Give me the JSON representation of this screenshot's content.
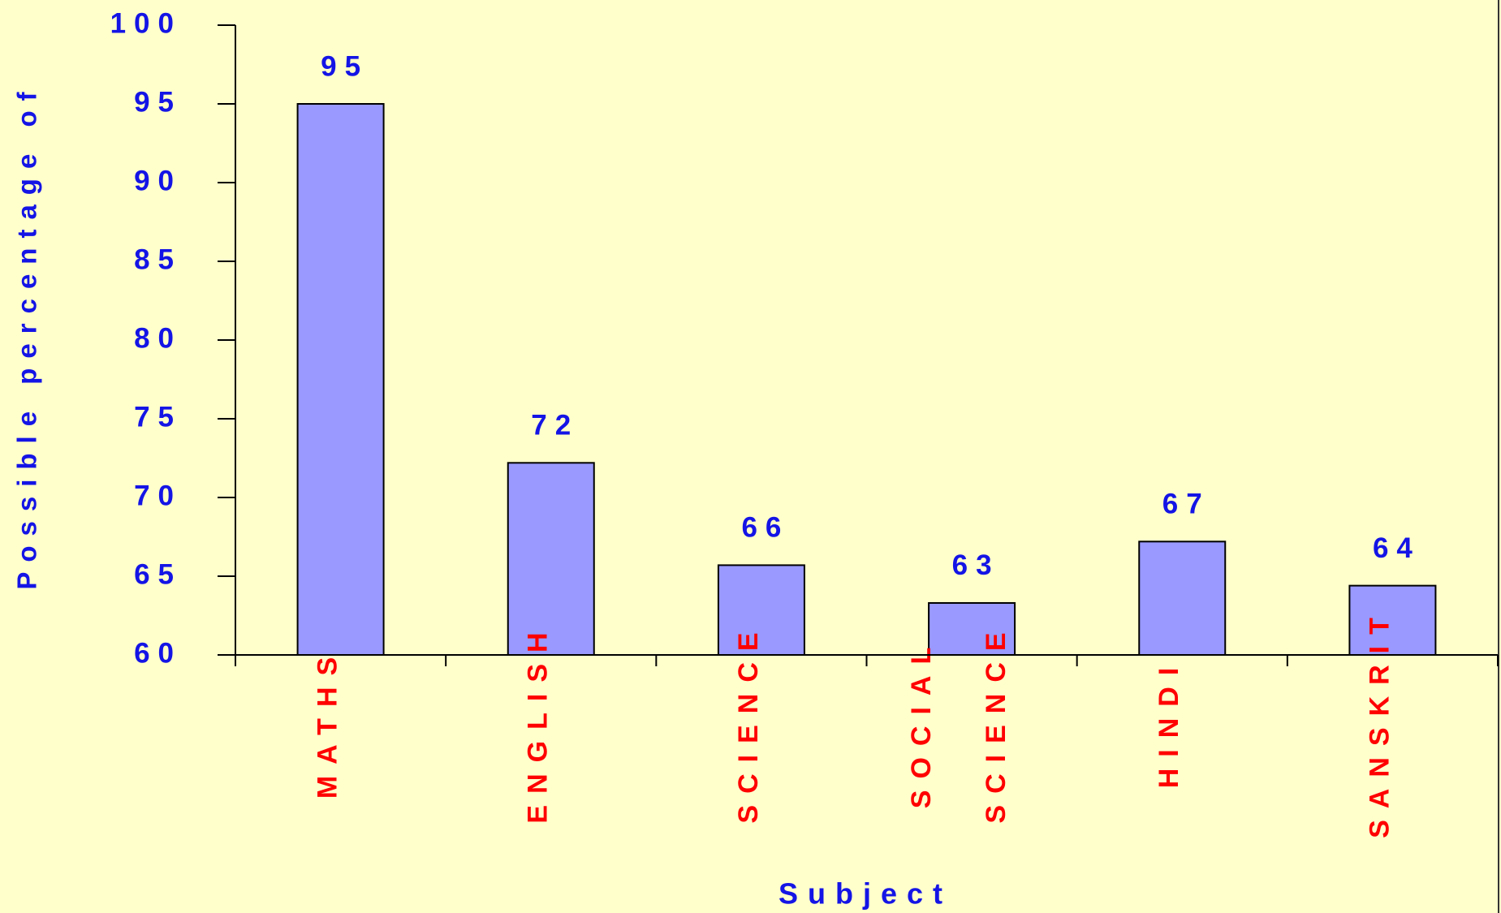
{
  "chart_data": {
    "type": "bar",
    "x_label": "Subject",
    "y_label": "Possible percentage of",
    "categories": [
      "MATHS",
      "ENGLISH",
      "SCIENCE",
      "SOCIAL SCIENCE",
      "HINDI",
      "SANSKRIT"
    ],
    "values": [
      95,
      72.2,
      65.7,
      63.3,
      67.2,
      64.4
    ],
    "value_labels": [
      "95",
      "72",
      "66",
      "63",
      "67",
      "64"
    ],
    "color": "#9999ff",
    "ylim": [
      60,
      100
    ],
    "yticks": [
      60,
      65,
      70,
      75,
      80,
      85,
      90,
      95,
      100
    ]
  }
}
